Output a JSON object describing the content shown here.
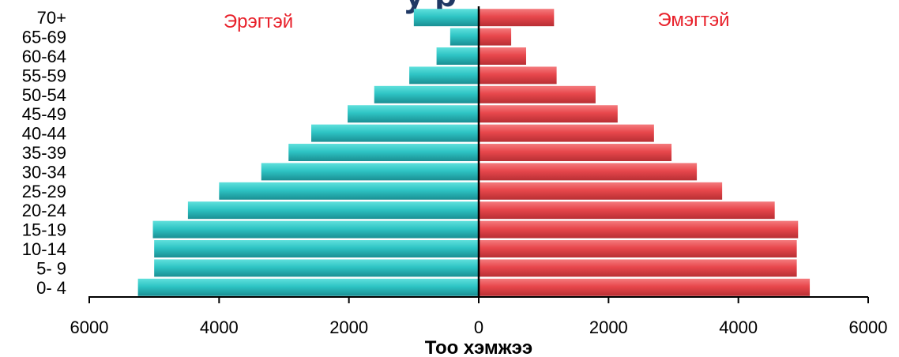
{
  "chart_data": {
    "type": "bar",
    "orientation": "horizontal-population-pyramid",
    "title_fragment": "у    р",
    "categories": [
      "0- 4",
      "5- 9",
      "10-14",
      "15-19",
      "20-24",
      "25-29",
      "30-34",
      "35-39",
      "40-44",
      "45-49",
      "50-54",
      "55-59",
      "60-64",
      "65-69",
      "70+"
    ],
    "series": [
      {
        "name": "Эрэгтэй",
        "side": "left",
        "color": "#2ec4c4",
        "values": [
          5250,
          5000,
          5000,
          5020,
          4480,
          4000,
          3350,
          2930,
          2580,
          2020,
          1610,
          1070,
          650,
          440,
          1000
        ]
      },
      {
        "name": "Эмэгтэй",
        "side": "right",
        "color": "#e8474c",
        "values": [
          5100,
          4900,
          4900,
          4920,
          4560,
          3750,
          3360,
          2970,
          2700,
          2140,
          1800,
          1200,
          730,
          500,
          1160
        ]
      }
    ],
    "xlabel": "Тоо хэмжээ",
    "ylabel": "",
    "xlim": [
      -6000,
      6000
    ],
    "x_ticks": [
      -6000,
      -4000,
      -2000,
      0,
      2000,
      4000,
      6000
    ],
    "x_tick_labels": [
      "6000",
      "4000",
      "2000",
      "0",
      "2000",
      "4000",
      "6000"
    ],
    "legend_color": "#e8202a",
    "grid": false
  }
}
